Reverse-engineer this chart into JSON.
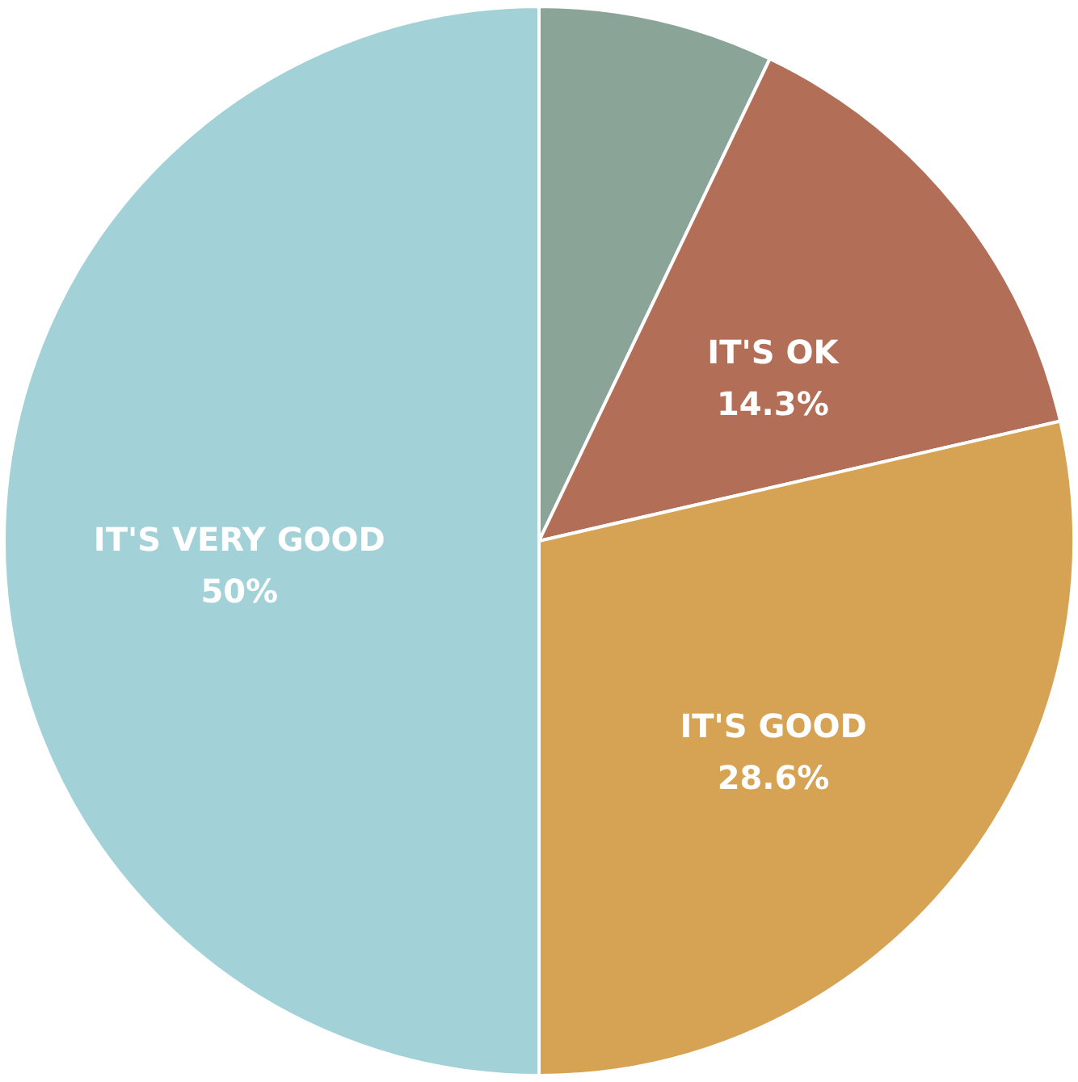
{
  "chart_data": {
    "type": "pie",
    "categories": [
      null,
      "IT'S OK",
      "IT'S GOOD",
      "IT'S VERY GOOD"
    ],
    "values": [
      7.1,
      14.3,
      28.6,
      50
    ],
    "colors": [
      "#8aa598",
      "#b36e57",
      "#d6a355",
      "#a2d2d8"
    ],
    "value_labels": [
      null,
      "14.3%",
      "28.6%",
      "50%"
    ]
  }
}
